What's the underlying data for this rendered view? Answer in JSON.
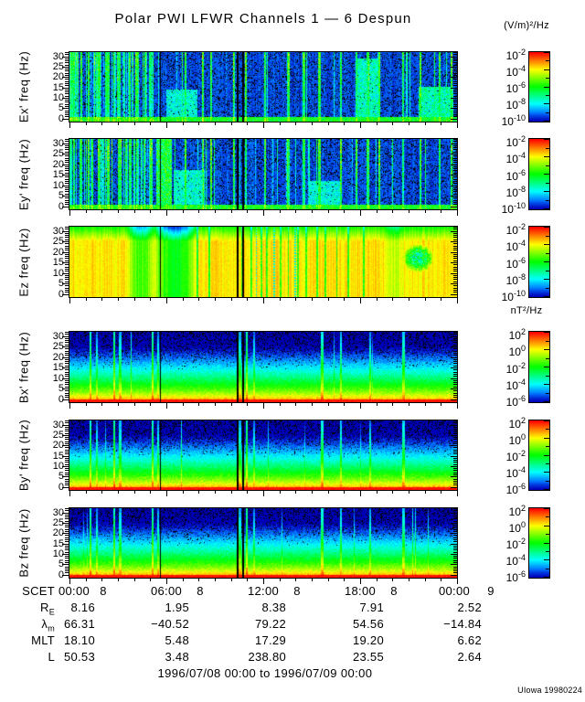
{
  "title": "Polar PWI LFWR Channels 1 — 6 Despun",
  "credit": "UIowa 19980224",
  "footer_range": "1996/07/08 00:00 to 1996/07/09 00:00",
  "colorbar_units": {
    "electric": "(V/m)²/Hz",
    "magnetic": "nT²/Hz"
  },
  "chart_data": {
    "type": "heatmap",
    "subtype": "time-frequency spectrogram, 6 stacked panels",
    "time_axis": {
      "label": "SCET",
      "tick_times": [
        "00:00",
        "06:00",
        "12:00",
        "18:00",
        "00:00"
      ],
      "tick_days": [
        "8",
        "8",
        "8",
        "8",
        "9"
      ],
      "minor_tick_interval_hours": 1,
      "start": "1996/07/08 00:00",
      "end": "1996/07/09 00:00"
    },
    "freq_axis": {
      "unit": "Hz",
      "ylim": [
        0,
        32
      ],
      "major_ticks": [
        0,
        5,
        10,
        15,
        20,
        25,
        30
      ],
      "minor_tick_interval": 1
    },
    "panels": [
      {
        "id": "ex",
        "ylabel": "Ex' freq (Hz)",
        "group": "E",
        "description": "dark blue low-intensity background with black speckle, dense broadband green bursts 00:00-03:00, scattered vertical burst lines all day, green enhancement below ~2 Hz"
      },
      {
        "id": "ey",
        "ylabel": "Ey' freq (Hz)",
        "group": "E",
        "description": "similar to Ex; strong broadband burst near 05:45-06:30 and scattered vertical burst lines"
      },
      {
        "id": "ez",
        "ylabel": "Ez freq (Hz)",
        "group": "EZ",
        "description": "high yellow intensity across all frequencies, green band above ~25 Hz, deep green dropouts near 04:00-05:00 and 06:00-07:30, many narrow green/blue streaks 10:30-15:00, blue-cyan patch near 21:30 at 10-20 Hz"
      },
      {
        "id": "bx",
        "ylabel": "Bx' freq (Hz)",
        "group": "B",
        "description": "intensity falls with frequency: red below ~2 Hz, yellow-green 3-8 Hz, cyan 8-12 Hz, blue above; narrow broadband spikes"
      },
      {
        "id": "by",
        "ylabel": "By' freq (Hz)",
        "group": "B",
        "description": "same falling spectrum as Bx with narrow broadband spikes"
      },
      {
        "id": "bz",
        "ylabel": "Bz freq (Hz)",
        "group": "B",
        "description": "same falling spectrum as Bx/By with fewer spikes"
      }
    ],
    "colorbars": {
      "electric": {
        "unit": "(V/m)²/Hz",
        "applies_to": [
          "ex",
          "ey",
          "ez"
        ],
        "ticks": [
          {
            "t": "10",
            "sup": "-2"
          },
          {
            "t": "10",
            "sup": "-4"
          },
          {
            "t": "10",
            "sup": "-6"
          },
          {
            "t": "10",
            "sup": "-8"
          },
          {
            "t": "10",
            "sup": "-10"
          }
        ]
      },
      "magnetic": {
        "unit": "nT²/Hz",
        "applies_to": [
          "bx",
          "by",
          "bz"
        ],
        "ticks": [
          {
            "t": "10",
            "sup": "2"
          },
          {
            "t": "10",
            "sup": "0"
          },
          {
            "t": "10",
            "sup": "-2"
          },
          {
            "t": "10",
            "sup": "-4"
          },
          {
            "t": "10",
            "sup": "-6"
          }
        ]
      },
      "scale_colors_top_to_bottom": [
        "#ff0000",
        "#ff8800",
        "#ffff00",
        "#00ff00",
        "#00ffff",
        "#0000ff"
      ]
    },
    "ephemeris": {
      "row_labels": [
        {
          "t": "SCET"
        },
        {
          "t": "R",
          "sub": "E"
        },
        {
          "t": "λ",
          "sub": "m"
        },
        {
          "t": "MLT"
        },
        {
          "t": "L"
        }
      ],
      "rows": [
        {
          "name": "RE",
          "values": [
            "8.16",
            "1.95",
            "8.38",
            "7.91",
            "2.52"
          ]
        },
        {
          "name": "λm",
          "values": [
            "66.31",
            "−40.52",
            "79.22",
            "54.56",
            "−14.84"
          ]
        },
        {
          "name": "MLT",
          "values": [
            "18.10",
            "5.48",
            "17.29",
            "19.20",
            "6.62"
          ]
        },
        {
          "name": "L",
          "values": [
            "50.53",
            "3.48",
            "238.80",
            "23.55",
            "2.64"
          ]
        }
      ]
    },
    "render_hints": {
      "gap_lines": [
        {
          "x": 0.2335,
          "w": 1
        },
        {
          "x": 0.4316,
          "w": 2
        },
        {
          "x": 0.4458,
          "w": 2
        }
      ],
      "e_streaks": [
        0.012,
        0.03,
        0.05,
        0.075,
        0.1,
        0.13,
        0.155,
        0.175,
        0.21,
        0.3,
        0.345,
        0.365,
        0.425,
        0.455,
        0.505,
        0.565,
        0.605,
        0.645,
        0.7,
        0.74,
        0.77,
        0.8,
        0.86,
        0.905,
        0.955,
        0.985
      ],
      "e_cluster_end": 0.22,
      "e_haze": {
        "ex": [
          {
            "x0": 0.25,
            "x1": 0.33,
            "top": 0.45,
            "v": 0.3
          },
          {
            "x0": 0.74,
            "x1": 0.8,
            "top": 0.9,
            "v": 0.34
          },
          {
            "x0": 0.9,
            "x1": 0.99,
            "top": 0.5,
            "v": 0.36
          }
        ],
        "ey": [
          {
            "x0": 0.225,
            "x1": 0.265,
            "top": 1.0,
            "v": 0.5
          },
          {
            "x0": 0.27,
            "x1": 0.35,
            "top": 0.55,
            "v": 0.32
          },
          {
            "x0": 0.62,
            "x1": 0.7,
            "top": 0.4,
            "v": 0.3
          }
        ]
      },
      "b_streaks": [
        {
          "x": 0.055,
          "c": 0.45
        },
        {
          "x": 0.07,
          "c": 0.28
        },
        {
          "x": 0.115,
          "c": 0.5
        },
        {
          "x": 0.131,
          "c": 0.33
        },
        {
          "x": 0.215,
          "c": 0.48
        },
        {
          "x": 0.228,
          "c": 0.3
        },
        {
          "x": 0.44,
          "c": 0.32
        },
        {
          "x": 0.458,
          "c": 0.5
        },
        {
          "x": 0.476,
          "c": 0.28
        },
        {
          "x": 0.652,
          "c": 0.42
        },
        {
          "x": 0.7,
          "c": 0.35
        },
        {
          "x": 0.775,
          "c": 0.3
        },
        {
          "x": 0.862,
          "c": 0.38
        }
      ],
      "ez_dips": [
        {
          "x": 0.185,
          "w": 0.038,
          "d": 0.42
        },
        {
          "x": 0.272,
          "w": 0.06,
          "d": 0.58
        },
        {
          "x": 0.84,
          "w": 0.025,
          "d": 0.18
        }
      ],
      "ez_thin": [
        0.33,
        0.36,
        0.445,
        0.47,
        0.495,
        0.51,
        0.545,
        0.565,
        0.59,
        0.61,
        0.64,
        0.66,
        0.69,
        0.72,
        0.76
      ],
      "ez_blue_dots": [
        0.482,
        0.528,
        0.582
      ],
      "ez_patch": {
        "x": 0.9,
        "y": 0.44,
        "rx": 0.04,
        "ry": 0.2,
        "d": 0.5
      }
    }
  }
}
